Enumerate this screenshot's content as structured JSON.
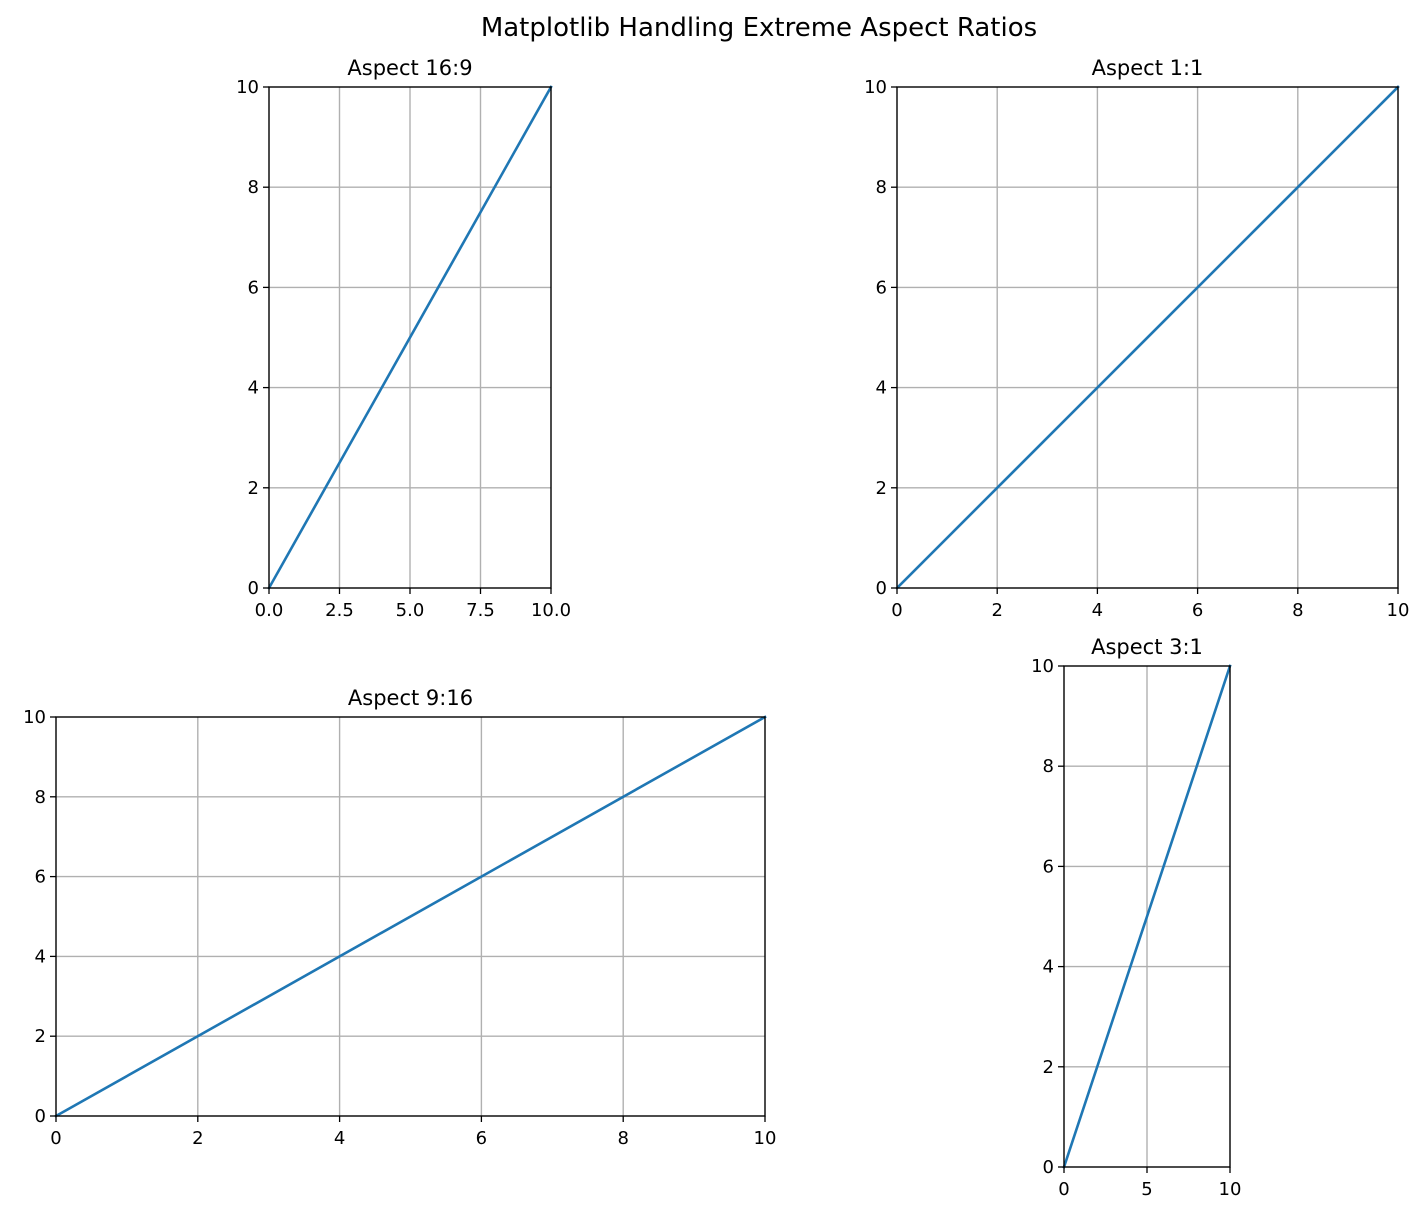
{
  "figure": {
    "suptitle": "Matplotlib Handling Extreme Aspect Ratios"
  },
  "chart_data": [
    {
      "type": "line",
      "title": "Aspect 16:9",
      "xlim": [
        0,
        10
      ],
      "ylim": [
        0,
        10
      ],
      "x_ticks": [
        0,
        2.5,
        5,
        7.5,
        10
      ],
      "x_tick_labels": [
        "0.0",
        "2.5",
        "5.0",
        "7.5",
        "10.0"
      ],
      "y_ticks": [
        0,
        2,
        4,
        6,
        8,
        10
      ],
      "y_tick_labels": [
        "0",
        "2",
        "4",
        "6",
        "8",
        "10"
      ],
      "grid": true,
      "series": [
        {
          "color": "#1f77b4",
          "x": [
            0,
            10
          ],
          "y": [
            0,
            10
          ]
        }
      ]
    },
    {
      "type": "line",
      "title": "Aspect 1:1",
      "xlim": [
        0,
        10
      ],
      "ylim": [
        0,
        10
      ],
      "x_ticks": [
        0,
        2,
        4,
        6,
        8,
        10
      ],
      "x_tick_labels": [
        "0",
        "2",
        "4",
        "6",
        "8",
        "10"
      ],
      "y_ticks": [
        0,
        2,
        4,
        6,
        8,
        10
      ],
      "y_tick_labels": [
        "0",
        "2",
        "4",
        "6",
        "8",
        "10"
      ],
      "grid": true,
      "series": [
        {
          "color": "#1f77b4",
          "x": [
            0,
            10
          ],
          "y": [
            0,
            10
          ]
        }
      ]
    },
    {
      "type": "line",
      "title": "Aspect 9:16",
      "xlim": [
        0,
        10
      ],
      "ylim": [
        0,
        10
      ],
      "x_ticks": [
        0,
        2,
        4,
        6,
        8,
        10
      ],
      "x_tick_labels": [
        "0",
        "2",
        "4",
        "6",
        "8",
        "10"
      ],
      "y_ticks": [
        0,
        2,
        4,
        6,
        8,
        10
      ],
      "y_tick_labels": [
        "0",
        "2",
        "4",
        "6",
        "8",
        "10"
      ],
      "grid": true,
      "series": [
        {
          "color": "#1f77b4",
          "x": [
            0,
            10
          ],
          "y": [
            0,
            10
          ]
        }
      ]
    },
    {
      "type": "line",
      "title": "Aspect 3:1",
      "xlim": [
        0,
        10
      ],
      "ylim": [
        0,
        10
      ],
      "x_ticks": [
        0,
        5,
        10
      ],
      "x_tick_labels": [
        "0",
        "5",
        "10"
      ],
      "y_ticks": [
        0,
        2,
        4,
        6,
        8,
        10
      ],
      "y_tick_labels": [
        "0",
        "2",
        "4",
        "6",
        "8",
        "10"
      ],
      "grid": true,
      "series": [
        {
          "color": "#1f77b4",
          "x": [
            0,
            10
          ],
          "y": [
            0,
            10
          ]
        }
      ]
    }
  ]
}
